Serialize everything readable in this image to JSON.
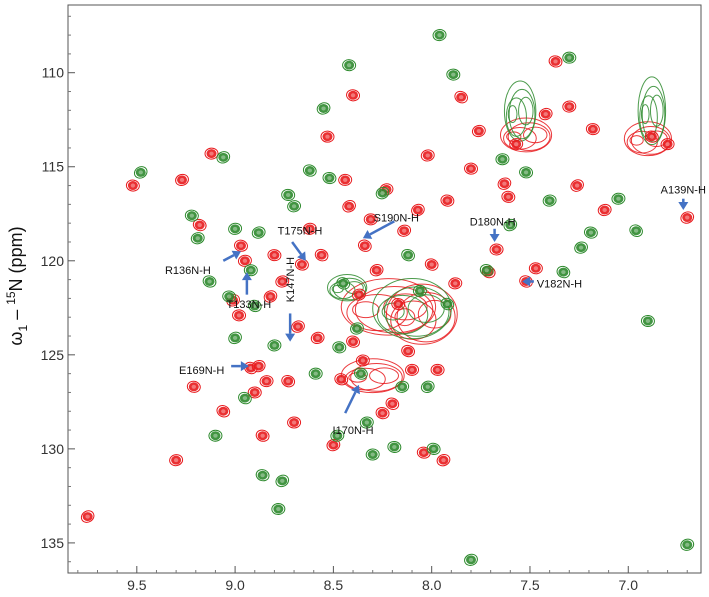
{
  "chart_data": {
    "type": "scatter",
    "title": "",
    "xlabel": "",
    "ylabel": "ω1 – 15N (ppm)",
    "ylabel_parts": {
      "main": "ω",
      "sub": "1",
      "mid": " – ",
      "sup": "15",
      "tail": "N (ppm)"
    },
    "x_reversed": true,
    "xlim": [
      9.85,
      6.63
    ],
    "ylim": [
      106.4,
      136.6
    ],
    "y_reversed": true,
    "x_ticks": [
      9.5,
      9.0,
      8.5,
      8.0,
      7.5,
      7.0
    ],
    "x_tick_labels": [
      "9.5",
      "9.0",
      "8.5",
      "8.0",
      "7.5",
      "7.0"
    ],
    "y_ticks": [
      110,
      115,
      120,
      125,
      130,
      135
    ],
    "y_tick_labels": [
      "110",
      "115",
      "120",
      "125",
      "130",
      "135"
    ],
    "grid": false,
    "series": [
      {
        "color": "#e8191c",
        "points": [
          [
            9.75,
            133.6
          ],
          [
            9.52,
            116.0
          ],
          [
            9.27,
            115.7
          ],
          [
            9.18,
            118.1
          ],
          [
            9.12,
            114.3
          ],
          [
            9.01,
            122.1
          ],
          [
            8.97,
            119.2
          ],
          [
            8.95,
            120.0
          ],
          [
            8.92,
            125.7
          ],
          [
            8.9,
            127.0
          ],
          [
            8.88,
            125.6
          ],
          [
            8.86,
            129.3
          ],
          [
            8.84,
            126.4
          ],
          [
            8.82,
            121.9
          ],
          [
            8.8,
            119.7
          ],
          [
            8.76,
            121.1
          ],
          [
            8.73,
            126.4
          ],
          [
            8.7,
            128.6
          ],
          [
            8.68,
            123.5
          ],
          [
            8.66,
            120.2
          ],
          [
            8.62,
            118.3
          ],
          [
            8.56,
            119.7
          ],
          [
            8.53,
            113.4
          ],
          [
            8.5,
            129.8
          ],
          [
            8.46,
            126.3
          ],
          [
            8.44,
            115.7
          ],
          [
            8.42,
            117.1
          ],
          [
            8.4,
            111.2
          ],
          [
            8.37,
            121.8
          ],
          [
            8.34,
            119.2
          ],
          [
            8.31,
            117.8
          ],
          [
            8.28,
            120.5
          ],
          [
            8.25,
            128.1
          ],
          [
            8.23,
            116.2
          ],
          [
            8.2,
            127.6
          ],
          [
            8.17,
            122.3
          ],
          [
            8.14,
            118.4
          ],
          [
            8.12,
            124.8
          ],
          [
            8.1,
            125.8
          ],
          [
            8.07,
            117.3
          ],
          [
            8.04,
            130.2
          ],
          [
            8.02,
            114.4
          ],
          [
            8.0,
            120.2
          ],
          [
            7.97,
            125.8
          ],
          [
            7.94,
            130.6
          ],
          [
            7.92,
            116.8
          ],
          [
            7.88,
            121.2
          ],
          [
            7.85,
            111.3
          ],
          [
            7.8,
            115.1
          ],
          [
            7.76,
            113.1
          ],
          [
            7.71,
            120.6
          ],
          [
            7.67,
            119.4
          ],
          [
            7.63,
            115.9
          ],
          [
            7.61,
            116.6
          ],
          [
            7.57,
            113.8
          ],
          [
            7.52,
            121.1
          ],
          [
            7.47,
            120.4
          ],
          [
            7.42,
            112.2
          ],
          [
            7.37,
            109.4
          ],
          [
            7.3,
            111.8
          ],
          [
            7.26,
            116.0
          ],
          [
            7.18,
            113.0
          ],
          [
            7.12,
            117.3
          ],
          [
            6.88,
            113.4
          ],
          [
            6.8,
            113.8
          ],
          [
            6.7,
            117.7
          ],
          [
            9.21,
            126.7
          ],
          [
            9.3,
            130.6
          ],
          [
            9.06,
            128.0
          ],
          [
            8.98,
            122.9
          ],
          [
            8.58,
            124.1
          ],
          [
            8.4,
            124.3
          ],
          [
            8.35,
            125.3
          ]
        ]
      },
      {
        "color": "#2d8a2d",
        "points": [
          [
            9.48,
            115.3
          ],
          [
            9.22,
            117.6
          ],
          [
            9.19,
            118.8
          ],
          [
            9.13,
            121.1
          ],
          [
            9.1,
            129.3
          ],
          [
            9.06,
            114.5
          ],
          [
            9.03,
            121.9
          ],
          [
            9.0,
            118.3
          ],
          [
            8.95,
            127.3
          ],
          [
            8.92,
            120.5
          ],
          [
            8.88,
            118.5
          ],
          [
            8.86,
            131.4
          ],
          [
            8.8,
            124.5
          ],
          [
            8.76,
            131.7
          ],
          [
            8.73,
            116.5
          ],
          [
            8.7,
            117.1
          ],
          [
            8.62,
            115.2
          ],
          [
            8.59,
            126.0
          ],
          [
            8.55,
            111.9
          ],
          [
            8.52,
            115.6
          ],
          [
            8.48,
            129.3
          ],
          [
            8.45,
            121.2
          ],
          [
            8.42,
            109.6
          ],
          [
            8.38,
            123.6
          ],
          [
            8.36,
            126.0
          ],
          [
            8.3,
            130.3
          ],
          [
            8.25,
            116.4
          ],
          [
            8.19,
            129.9
          ],
          [
            8.15,
            126.7
          ],
          [
            8.12,
            119.7
          ],
          [
            8.06,
            121.6
          ],
          [
            8.02,
            126.7
          ],
          [
            7.99,
            130.0
          ],
          [
            7.96,
            108.0
          ],
          [
            7.92,
            122.3
          ],
          [
            7.89,
            110.1
          ],
          [
            7.8,
            135.9
          ],
          [
            7.72,
            120.5
          ],
          [
            7.64,
            114.6
          ],
          [
            7.6,
            118.1
          ],
          [
            7.52,
            115.3
          ],
          [
            7.4,
            116.8
          ],
          [
            7.33,
            120.6
          ],
          [
            7.3,
            109.2
          ],
          [
            7.24,
            119.3
          ],
          [
            7.19,
            118.5
          ],
          [
            7.05,
            116.7
          ],
          [
            6.96,
            118.4
          ],
          [
            6.9,
            123.2
          ],
          [
            6.7,
            135.1
          ],
          [
            8.9,
            122.4
          ],
          [
            8.78,
            133.2
          ],
          [
            9.0,
            124.1
          ],
          [
            8.47,
            124.6
          ],
          [
            8.33,
            128.6
          ]
        ]
      }
    ],
    "blobs": [
      {
        "color": "#e8191c",
        "cx": 8.22,
        "cy": 122.6,
        "rx": 0.24,
        "ry": 1.5
      },
      {
        "color": "#e8191c",
        "cx": 8.05,
        "cy": 123.0,
        "rx": 0.18,
        "ry": 1.6
      },
      {
        "color": "#e8191c",
        "cx": 8.3,
        "cy": 126.2,
        "rx": 0.16,
        "ry": 0.9
      },
      {
        "color": "#e8191c",
        "cx": 7.52,
        "cy": 113.4,
        "rx": 0.13,
        "ry": 0.9
      },
      {
        "color": "#e8191c",
        "cx": 6.9,
        "cy": 113.6,
        "rx": 0.12,
        "ry": 0.9
      },
      {
        "color": "#2d8a2d",
        "cx": 8.1,
        "cy": 122.7,
        "rx": 0.2,
        "ry": 1.6
      },
      {
        "color": "#2d8a2d",
        "cx": 7.55,
        "cy": 112.2,
        "rx": 0.08,
        "ry": 1.6
      },
      {
        "color": "#2d8a2d",
        "cx": 6.88,
        "cy": 112.2,
        "rx": 0.07,
        "ry": 1.8
      },
      {
        "color": "#2d8a2d",
        "cx": 8.43,
        "cy": 121.5,
        "rx": 0.1,
        "ry": 0.7
      }
    ],
    "annotations": [
      {
        "text": "A139N-H",
        "tx": 6.72,
        "ty": 116.2,
        "ax": 6.72,
        "ay": 116.7,
        "hx": 6.72,
        "hy": 117.3
      },
      {
        "text": "D180N-H",
        "tx": 7.69,
        "ty": 117.9,
        "ax": 7.68,
        "ay": 118.3,
        "hx": 7.68,
        "hy": 119.0
      },
      {
        "text": "S190N-H",
        "tx": 8.18,
        "ty": 117.7,
        "ax": 8.19,
        "ay": 117.9,
        "hx": 8.35,
        "hy": 118.8
      },
      {
        "text": "T175N-H",
        "tx": 8.67,
        "ty": 118.4,
        "ax": 8.71,
        "ay": 119.0,
        "hx": 8.64,
        "hy": 120.0
      },
      {
        "text": "R136N-H",
        "tx": 9.24,
        "ty": 120.5,
        "ax": 9.06,
        "ay": 120.0,
        "hx": 8.97,
        "hy": 119.5
      },
      {
        "text": "V182N-H",
        "tx": 7.35,
        "ty": 121.2,
        "ax": 7.48,
        "ay": 121.1,
        "hx": 7.54,
        "hy": 121.1
      },
      {
        "text": "T133N-H",
        "tx": 8.93,
        "ty": 122.3,
        "ax": 8.94,
        "ay": 121.8,
        "hx": 8.94,
        "hy": 120.6
      },
      {
        "text": "E169N-H",
        "tx": 9.17,
        "ty": 125.8,
        "ax": 9.02,
        "ay": 125.6,
        "hx": 8.93,
        "hy": 125.6
      },
      {
        "text": "I170N-H",
        "tx": 8.4,
        "ty": 129.0,
        "ax": 8.44,
        "ay": 128.1,
        "hx": 8.37,
        "hy": 126.6
      }
    ],
    "rotated_annotations": [
      {
        "text": "K147N-H",
        "tx": 8.7,
        "ty": 121.0,
        "ax": 8.72,
        "ay": 122.8,
        "hx": 8.72,
        "hy": 124.3
      }
    ],
    "arrow_color": "#4472c4"
  }
}
